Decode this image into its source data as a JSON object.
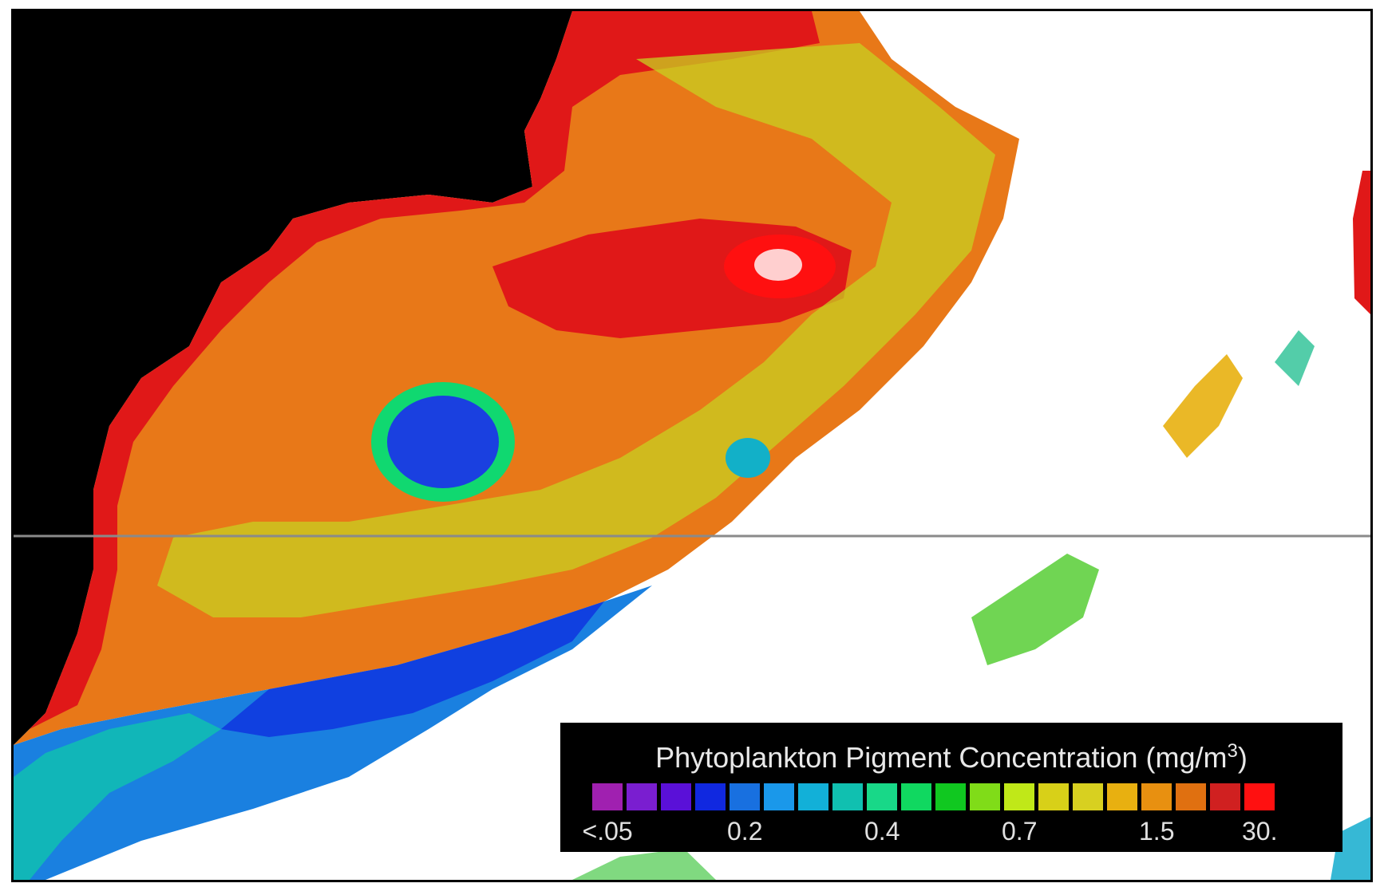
{
  "legend": {
    "title_main": "Phytoplankton Pigment Concentration (mg/m",
    "title_sup": "3",
    "title_close": ")",
    "colors": [
      "#a020b0",
      "#7a1ed0",
      "#5a10d8",
      "#1028e0",
      "#1870e0",
      "#1a98ea",
      "#12b0d8",
      "#10c0b0",
      "#18d888",
      "#10d860",
      "#10c820",
      "#80dc18",
      "#c0e818",
      "#d8d018",
      "#d8d020",
      "#e8b010",
      "#e89010",
      "#e07010",
      "#d02020",
      "#ff1010"
    ],
    "ticks": [
      {
        "label": "<.05",
        "slot": 0
      },
      {
        "label": "0.2",
        "slot": 4
      },
      {
        "label": "0.4",
        "slot": 8
      },
      {
        "label": "0.7",
        "slot": 12
      },
      {
        "label": "1.5",
        "slot": 16
      },
      {
        "label": "30.",
        "slot": 19
      }
    ]
  },
  "map": {
    "land_color": "#000000",
    "cloud_color": "#ffffff",
    "gridline_color": "#8a8a8a"
  }
}
